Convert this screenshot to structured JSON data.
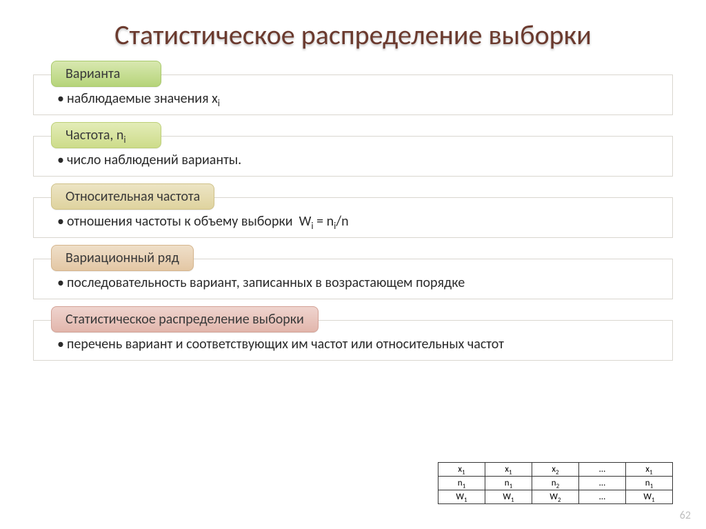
{
  "title_color": "#6b3a2e",
  "title": "Статистическое распределение выборки",
  "blocks": [
    {
      "pill": "Варианта",
      "pill_bg_top": "#d8e8b0",
      "pill_bg_bot": "#b6d47a",
      "pill_border": "#a8c96a",
      "body_html": "наблюдаемые значения x<sub>i</sub>"
    },
    {
      "pill": "Частота, n<sub>i</sub>",
      "pill_bg_top": "#e3ecb8",
      "pill_bg_bot": "#cddc8a",
      "pill_border": "#bccf76",
      "body_html": "число наблюдений варианты."
    },
    {
      "pill": "Относительная частота",
      "pill_bg_top": "#ece4c4",
      "pill_bg_bot": "#dfd39e",
      "pill_border": "#cfc188",
      "body_html": "отношения частоты к объему выборки &nbsp;W<sub>i</sub> = n<sub>i</sub>/n"
    },
    {
      "pill": "Вариационный ряд",
      "pill_bg_top": "#efdfc9",
      "pill_bg_bot": "#e3c7a4",
      "pill_border": "#d4b48c",
      "body_html": "последовательность вариант, записанных в возрастающем порядке"
    },
    {
      "pill": "Статистическое распределение выборки",
      "pill_bg_top": "#efd4ce",
      "pill_bg_bot": "#e2b6ac",
      "pill_border": "#d3a195",
      "body_html": "перечень вариант и соответствующих им частот или относительных частот"
    }
  ],
  "mini_table": {
    "rows": [
      [
        "x<sub>1</sub>",
        "x<sub>1</sub>",
        "x<sub>2</sub>",
        "…",
        "x<sub>1</sub>"
      ],
      [
        "n<sub>1</sub>",
        "n<sub>1</sub>",
        "n<sub>2</sub>",
        "…",
        "n<sub>1</sub>"
      ],
      [
        "W<sub>1</sub>",
        "W<sub>1</sub>",
        "W<sub>2</sub>",
        "…",
        "W<sub>1</sub>"
      ]
    ]
  },
  "page_number": "62"
}
